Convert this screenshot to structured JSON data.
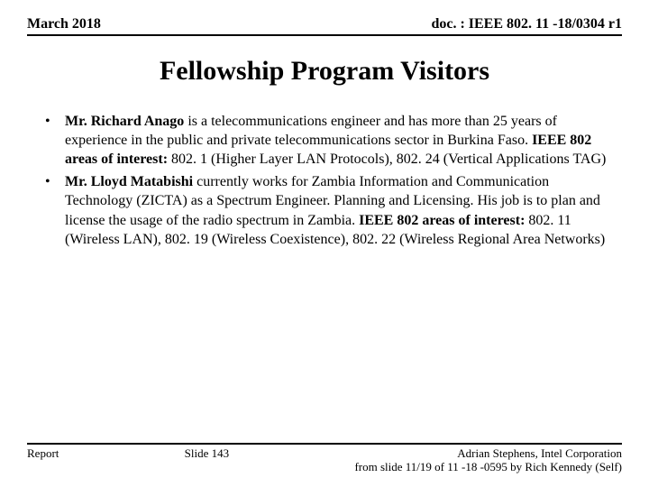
{
  "header": {
    "left": "March 2018",
    "right": "doc. : IEEE 802. 11 -18/0304 r1"
  },
  "title": "Fellowship Program Visitors",
  "bullets": [
    {
      "name1": " Mr. Richard Anago",
      "text1": " is a telecommunications engineer and has more than 25 years of experience in the public and private telecommunications sector in Burkina Faso. ",
      "label": "IEEE 802 areas of interest:",
      "text2": " 802. 1 (Higher Layer LAN Protocols), 802. 24 (Vertical Applications TAG)"
    },
    {
      "name1": "Mr. Lloyd Matabishi",
      "text1": " currently works for Zambia Information and Communication Technology (ZICTA) as a Spectrum Engineer. Planning and Licensing. His job is to plan and license the usage of the radio spectrum in Zambia. ",
      "label": "IEEE 802 areas of interest:",
      "text2": " 802. 11 (Wireless LAN), 802. 19 (Wireless Coexistence), 802. 22 (Wireless Regional Area Networks)"
    }
  ],
  "footer": {
    "left": "Report",
    "center": "Slide 143",
    "right_line1": "Adrian Stephens, Intel Corporation",
    "right_line2": "from slide 11/19 of 11 -18 -0595 by Rich Kennedy (Self)"
  }
}
